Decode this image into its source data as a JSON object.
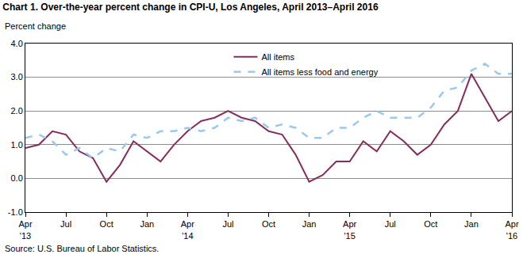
{
  "chart_data": {
    "type": "line",
    "title": "Chart 1. Over-the-year percent change in CPI-U, Los Angeles, April 2013–April 2016",
    "ylabel": "Percent change",
    "source": "Source: U.S. Bureau of Labor Statistics.",
    "categories": [
      "Apr '13",
      null,
      null,
      "Jul",
      null,
      null,
      "Oct",
      null,
      null,
      "Jan",
      null,
      null,
      "Apr '14",
      null,
      null,
      "Jul",
      null,
      null,
      "Oct",
      null,
      null,
      "Jan",
      null,
      null,
      "Apr '15",
      null,
      null,
      "Jul",
      null,
      null,
      "Oct",
      null,
      null,
      "Jan",
      null,
      null,
      "Apr '16"
    ],
    "series": [
      {
        "name": "All items",
        "color": "#862d59",
        "line_style": "solid",
        "values": [
          0.9,
          1.0,
          1.4,
          1.3,
          0.8,
          0.6,
          -0.1,
          0.4,
          1.1,
          0.8,
          0.5,
          1.0,
          1.4,
          1.7,
          1.8,
          2.0,
          1.8,
          1.7,
          1.4,
          1.3,
          0.7,
          -0.1,
          0.1,
          0.5,
          0.5,
          1.1,
          0.8,
          1.4,
          1.1,
          0.7,
          1.0,
          1.6,
          2.0,
          3.1,
          2.4,
          1.7,
          2.0
        ]
      },
      {
        "name": "All items less food and energy",
        "color": "#99c9ef",
        "line_style": "dash",
        "values": [
          1.2,
          1.3,
          1.1,
          0.7,
          0.9,
          0.6,
          0.9,
          0.8,
          1.3,
          1.2,
          1.4,
          1.4,
          1.5,
          1.4,
          1.5,
          1.8,
          1.7,
          1.8,
          1.5,
          1.6,
          1.5,
          1.2,
          1.2,
          1.5,
          1.5,
          1.8,
          2.0,
          1.8,
          1.8,
          1.8,
          2.1,
          2.6,
          2.7,
          3.2,
          3.4,
          3.1,
          3.1
        ]
      }
    ],
    "ylim": [
      -1,
      4
    ],
    "yticks": [
      {
        "value": -1,
        "label": "-1.0"
      },
      {
        "value": 0,
        "label": "0.0"
      },
      {
        "value": 1,
        "label": "1.0"
      },
      {
        "value": 2,
        "label": "2.0"
      },
      {
        "value": 3,
        "label": "3.0"
      },
      {
        "value": 4,
        "label": "4.0"
      }
    ],
    "grid": true,
    "legend": "top"
  }
}
